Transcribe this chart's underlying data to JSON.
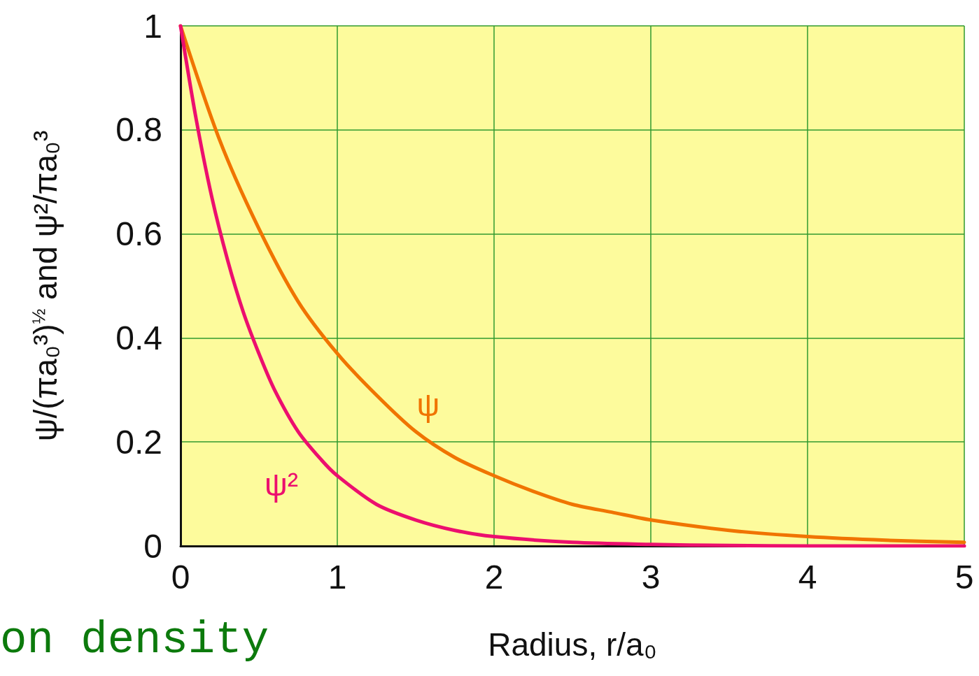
{
  "chart_data": {
    "type": "line",
    "xlabel": "Radius, r/a₀",
    "ylabel": "ψ/(πa₀³)$^{½}$ and ψ²/πa₀³",
    "annotations": [
      "on density"
    ],
    "series": [
      {
        "name": "ψ",
        "color": "#f07400",
        "x": [
          0,
          0.25,
          0.5,
          0.75,
          1,
          1.25,
          1.5,
          1.75,
          2,
          2.25,
          2.5,
          2.75,
          3,
          3.5,
          4,
          4.5,
          5
        ],
        "values": [
          1,
          0.78,
          0.61,
          0.47,
          0.37,
          0.29,
          0.22,
          0.17,
          0.135,
          0.105,
          0.08,
          0.065,
          0.05,
          0.03,
          0.018,
          0.011,
          0.007
        ]
      },
      {
        "name": "ψ²",
        "color": "#ec0f6e",
        "x": [
          0,
          0.1,
          0.2,
          0.3,
          0.4,
          0.5,
          0.6,
          0.75,
          0.9,
          1,
          1.25,
          1.5,
          1.75,
          2,
          2.5,
          3,
          3.5,
          4,
          5
        ],
        "values": [
          1,
          0.82,
          0.67,
          0.55,
          0.45,
          0.37,
          0.3,
          0.22,
          0.165,
          0.135,
          0.08,
          0.05,
          0.03,
          0.018,
          0.007,
          0.003,
          0.001,
          0,
          0
        ]
      }
    ],
    "xlim": [
      0,
      5
    ],
    "xticks": [
      0,
      1,
      2,
      3,
      4,
      5
    ],
    "ylim": [
      0,
      1
    ],
    "yticks": [
      0,
      0.2,
      0.4,
      0.6,
      0.8,
      1
    ],
    "grid": true,
    "legend": false,
    "marker": "none",
    "line_style": "solid"
  }
}
